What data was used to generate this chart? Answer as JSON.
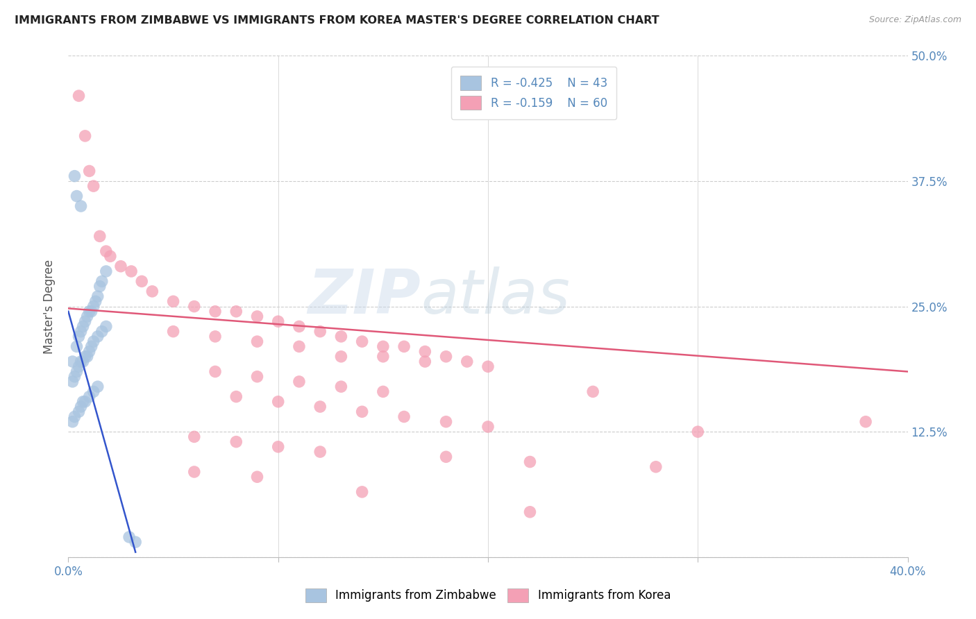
{
  "title": "IMMIGRANTS FROM ZIMBABWE VS IMMIGRANTS FROM KOREA MASTER'S DEGREE CORRELATION CHART",
  "source": "Source: ZipAtlas.com",
  "ylabel": "Master's Degree",
  "xlim": [
    0.0,
    0.4
  ],
  "ylim": [
    0.0,
    0.5
  ],
  "xticks": [
    0.0,
    0.1,
    0.2,
    0.3,
    0.4
  ],
  "xticklabels": [
    "0.0%",
    "",
    "",
    "",
    "40.0%"
  ],
  "yticks": [
    0.0,
    0.125,
    0.25,
    0.375,
    0.5
  ],
  "yticklabels": [
    "",
    "12.5%",
    "25.0%",
    "37.5%",
    "50.0%"
  ],
  "legend_r1": "R = -0.425",
  "legend_n1": "N = 43",
  "legend_r2": "R = -0.159",
  "legend_n2": "N = 60",
  "blue_color": "#a8c4e0",
  "pink_color": "#f4a0b5",
  "blue_line_color": "#3355cc",
  "pink_line_color": "#e05878",
  "watermark_zip": "ZIP",
  "watermark_atlas": "atlas",
  "zimbabwe_x": [
    0.002,
    0.004,
    0.005,
    0.006,
    0.007,
    0.008,
    0.009,
    0.01,
    0.011,
    0.012,
    0.013,
    0.014,
    0.015,
    0.016,
    0.018,
    0.002,
    0.003,
    0.004,
    0.005,
    0.006,
    0.007,
    0.008,
    0.009,
    0.01,
    0.011,
    0.012,
    0.014,
    0.016,
    0.018,
    0.002,
    0.003,
    0.005,
    0.006,
    0.007,
    0.008,
    0.01,
    0.012,
    0.014,
    0.003,
    0.004,
    0.006,
    0.029,
    0.032
  ],
  "zimbabwe_y": [
    0.195,
    0.21,
    0.22,
    0.225,
    0.23,
    0.235,
    0.24,
    0.245,
    0.245,
    0.25,
    0.255,
    0.26,
    0.27,
    0.275,
    0.285,
    0.175,
    0.18,
    0.185,
    0.19,
    0.195,
    0.195,
    0.2,
    0.2,
    0.205,
    0.21,
    0.215,
    0.22,
    0.225,
    0.23,
    0.135,
    0.14,
    0.145,
    0.15,
    0.155,
    0.155,
    0.16,
    0.165,
    0.17,
    0.38,
    0.36,
    0.35,
    0.02,
    0.015
  ],
  "korea_x": [
    0.005,
    0.008,
    0.01,
    0.012,
    0.015,
    0.018,
    0.02,
    0.025,
    0.03,
    0.035,
    0.04,
    0.05,
    0.06,
    0.07,
    0.08,
    0.09,
    0.1,
    0.11,
    0.12,
    0.13,
    0.14,
    0.15,
    0.16,
    0.17,
    0.18,
    0.19,
    0.2,
    0.05,
    0.07,
    0.09,
    0.11,
    0.13,
    0.15,
    0.17,
    0.07,
    0.09,
    0.11,
    0.13,
    0.15,
    0.25,
    0.08,
    0.1,
    0.12,
    0.14,
    0.16,
    0.18,
    0.2,
    0.3,
    0.06,
    0.08,
    0.1,
    0.12,
    0.18,
    0.22,
    0.28,
    0.06,
    0.09,
    0.14,
    0.22,
    0.38
  ],
  "korea_y": [
    0.46,
    0.42,
    0.385,
    0.37,
    0.32,
    0.305,
    0.3,
    0.29,
    0.285,
    0.275,
    0.265,
    0.255,
    0.25,
    0.245,
    0.245,
    0.24,
    0.235,
    0.23,
    0.225,
    0.22,
    0.215,
    0.21,
    0.21,
    0.205,
    0.2,
    0.195,
    0.19,
    0.225,
    0.22,
    0.215,
    0.21,
    0.2,
    0.2,
    0.195,
    0.185,
    0.18,
    0.175,
    0.17,
    0.165,
    0.165,
    0.16,
    0.155,
    0.15,
    0.145,
    0.14,
    0.135,
    0.13,
    0.125,
    0.12,
    0.115,
    0.11,
    0.105,
    0.1,
    0.095,
    0.09,
    0.085,
    0.08,
    0.065,
    0.045,
    0.135
  ],
  "blue_trend_x": [
    0.0,
    0.032
  ],
  "blue_trend_y": [
    0.245,
    0.005
  ],
  "pink_trend_x": [
    0.0,
    0.4
  ],
  "pink_trend_y": [
    0.248,
    0.185
  ]
}
